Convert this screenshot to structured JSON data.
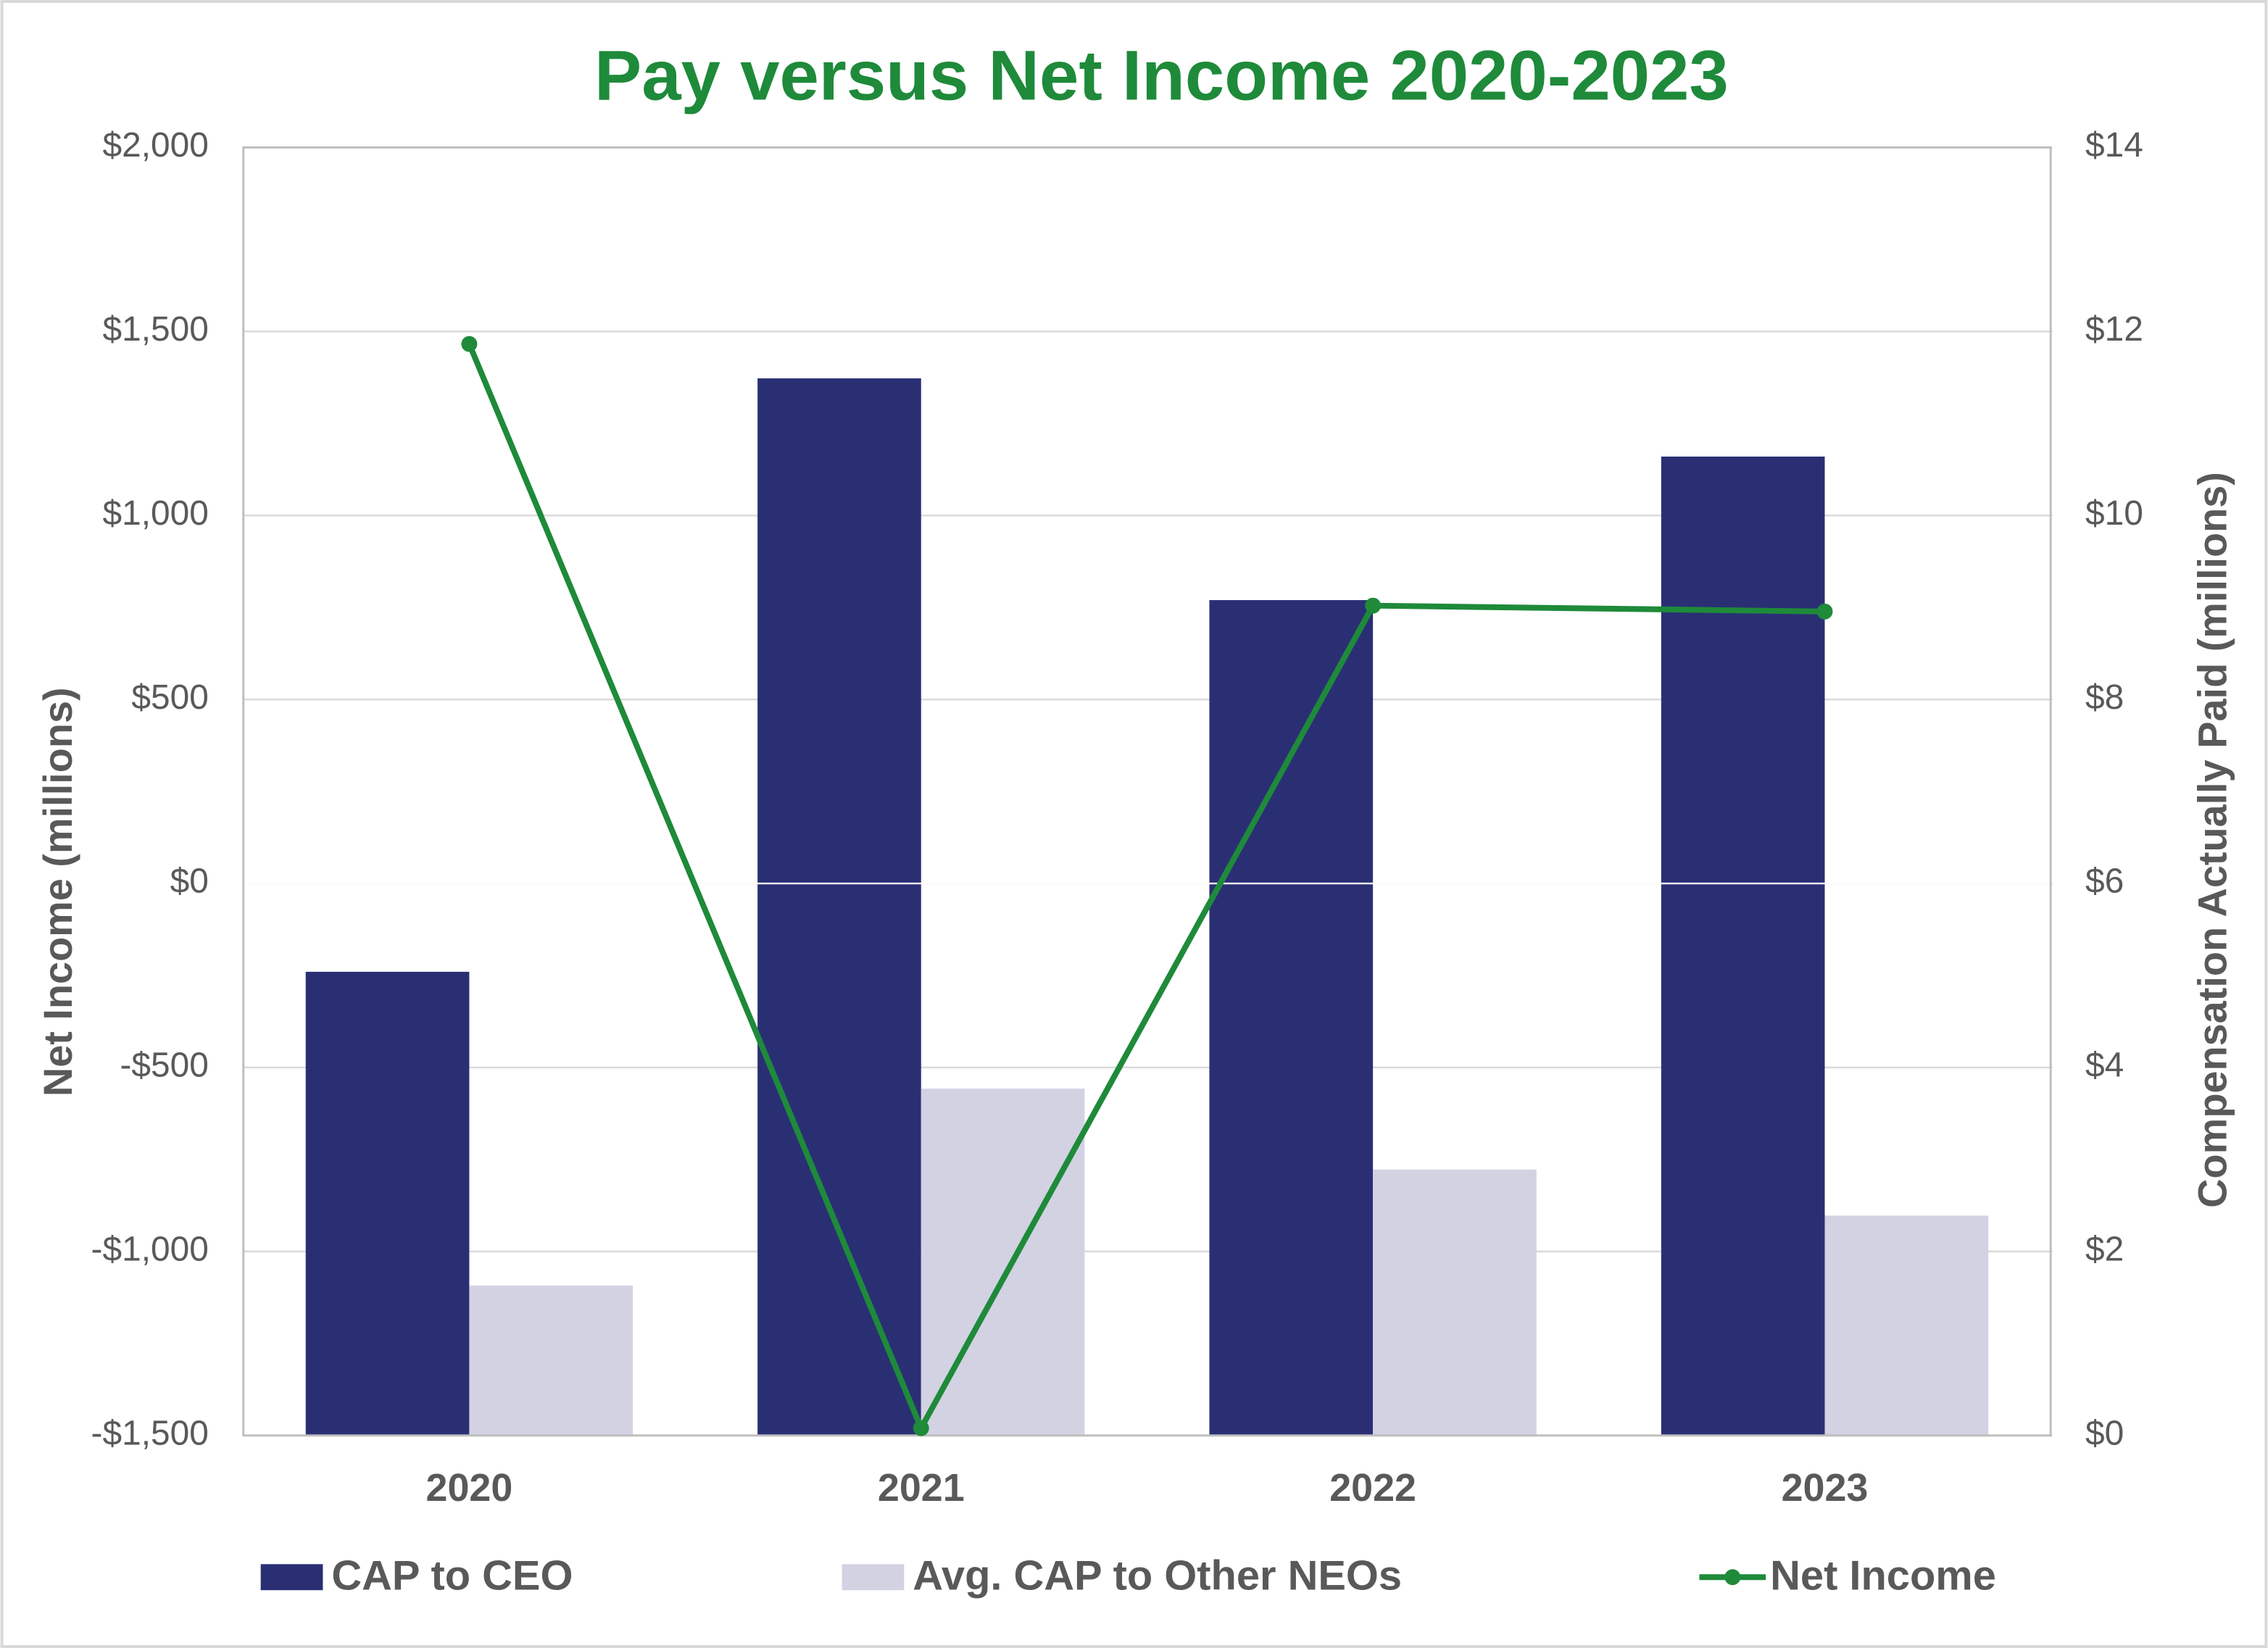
{
  "chart_data": {
    "type": "combo",
    "title": "Pay versus Net Income 2020-2023",
    "title_color": "#1e8a3a",
    "categories": [
      "2020",
      "2021",
      "2022",
      "2023"
    ],
    "series": [
      {
        "name": "CAP to CEO",
        "type": "bar",
        "axis": "y2",
        "color": "#2a2f74",
        "values": [
          5.04,
          11.49,
          9.08,
          10.64
        ]
      },
      {
        "name": "Avg. CAP to Other NEOs",
        "type": "bar",
        "axis": "y2",
        "color": "#d2d2e3",
        "values": [
          1.63,
          3.77,
          2.89,
          2.39
        ]
      },
      {
        "name": "Net Income",
        "type": "line",
        "color": "#1e8a3a",
        "values": [
          1466,
          -1480,
          755,
          739
        ]
      }
    ],
    "y_label": "Net Income (millions)",
    "y2_label": "Compensation Actually Paid (millions)",
    "ylim": [
      -1500,
      2000
    ],
    "yticks": [
      {
        "value": -1500,
        "label": "-$1,500"
      },
      {
        "value": -1000,
        "label": "-$1,000"
      },
      {
        "value": -500,
        "label": "-$500"
      },
      {
        "value": 0,
        "label": "$0"
      },
      {
        "value": 500,
        "label": "$500"
      },
      {
        "value": 1000,
        "label": "$1,000"
      },
      {
        "value": 1500,
        "label": "$1,500"
      },
      {
        "value": 2000,
        "label": "$2,000"
      }
    ],
    "y2lim": [
      0,
      14
    ],
    "y2ticks": [
      {
        "value": 0,
        "label": "$0"
      },
      {
        "value": 2,
        "label": "$2"
      },
      {
        "value": 4,
        "label": "$4"
      },
      {
        "value": 6,
        "label": "$6"
      },
      {
        "value": 8,
        "label": "$8"
      },
      {
        "value": 10,
        "label": "$10"
      },
      {
        "value": 12,
        "label": "$12"
      },
      {
        "value": 14,
        "label": "$14"
      }
    ],
    "grid": true,
    "legend": "bottom"
  }
}
